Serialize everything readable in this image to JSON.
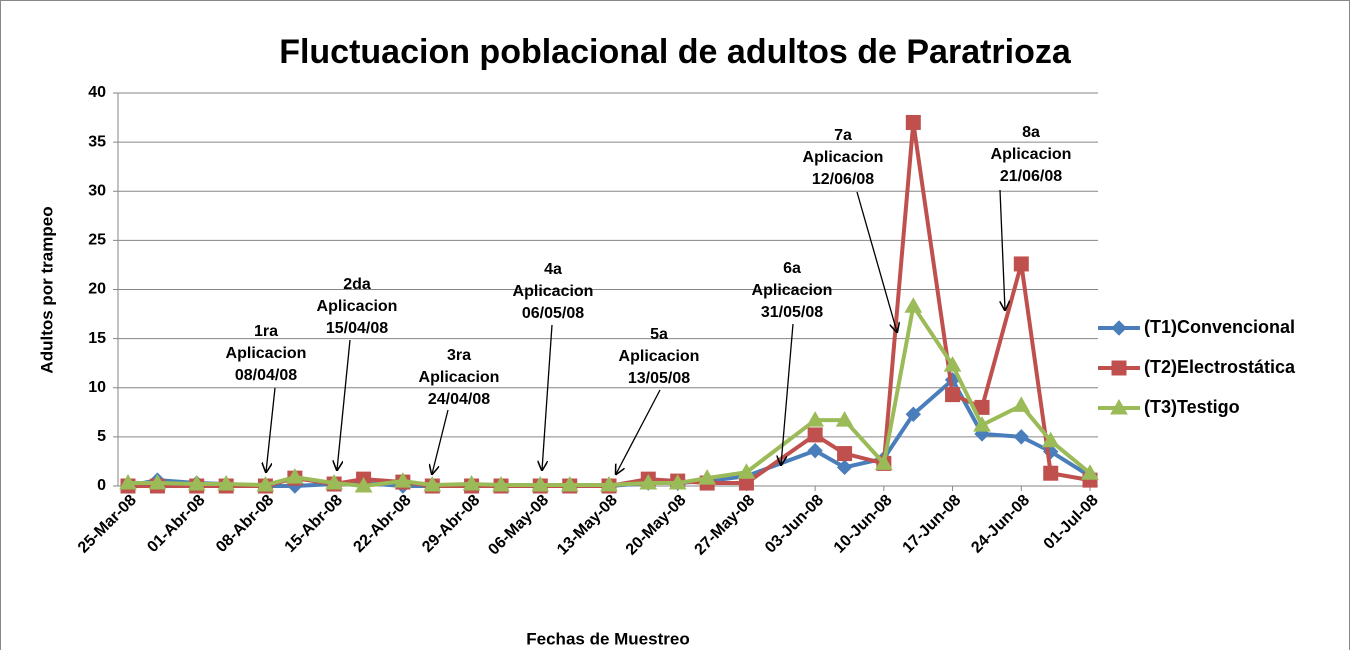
{
  "chart_data": {
    "type": "line",
    "title": "Fluctuacion poblacional de adultos de Paratrioza",
    "x_label": "Fechas de Muestreo",
    "y_label": "Adultos por trampeo",
    "x": [
      "2008-03-25",
      "2008-03-28",
      "2008-04-01",
      "2008-04-04",
      "2008-04-08",
      "2008-04-11",
      "2008-04-15",
      "2008-04-18",
      "2008-04-22",
      "2008-04-25",
      "2008-04-29",
      "2008-05-02",
      "2008-05-06",
      "2008-05-09",
      "2008-05-13",
      "2008-05-17",
      "2008-05-20",
      "2008-05-23",
      "2008-05-27",
      "2008-06-03",
      "2008-06-06",
      "2008-06-10",
      "2008-06-13",
      "2008-06-17",
      "2008-06-20",
      "2008-06-24",
      "2008-06-27",
      "2008-07-01"
    ],
    "series": [
      {
        "name": "(T1)Convencional",
        "color": "#4a7ebb",
        "marker": "diamond",
        "values": [
          0,
          0.6,
          0.3,
          0.2,
          0,
          0,
          0.2,
          0.3,
          0,
          0,
          0,
          0,
          0,
          0,
          0,
          0.3,
          0.3,
          0.5,
          1.0,
          3.6,
          1.9,
          2.8,
          7.3,
          10.8,
          5.3,
          5.0,
          3.5,
          1.0
        ]
      },
      {
        "name": "(T2)Electrostática",
        "color": "#c0504d",
        "marker": "square",
        "values": [
          0,
          0,
          0,
          0,
          0,
          0.8,
          0.2,
          0.7,
          0.4,
          0,
          0,
          0,
          0,
          0,
          0,
          0.7,
          0.5,
          0.3,
          0.3,
          5.2,
          3.3,
          2.3,
          37,
          9.3,
          8.0,
          22.6,
          1.3,
          0.6
        ]
      },
      {
        "name": "(T3)Testigo",
        "color": "#9bbb59",
        "marker": "triangle",
        "values": [
          0.3,
          0.3,
          0.2,
          0.2,
          0.1,
          0.9,
          0.3,
          0,
          0.5,
          0.1,
          0.2,
          0.1,
          0.1,
          0.1,
          0.1,
          0.3,
          0.3,
          0.8,
          1.4,
          6.7,
          6.7,
          2.3,
          18.3,
          12.3,
          6.2,
          8.2,
          4.6,
          1.3
        ]
      }
    ],
    "xlim": [
      "2008-03-25",
      "2008-07-01"
    ],
    "xticks": [
      {
        "value": "2008-03-25",
        "label": "25-Mar-08"
      },
      {
        "value": "2008-04-01",
        "label": "01-Abr-08"
      },
      {
        "value": "2008-04-08",
        "label": "08-Abr-08"
      },
      {
        "value": "2008-04-15",
        "label": "15-Abr-08"
      },
      {
        "value": "2008-04-22",
        "label": "22-Abr-08"
      },
      {
        "value": "2008-04-29",
        "label": "29-Abr-08"
      },
      {
        "value": "2008-05-06",
        "label": "06-May-08"
      },
      {
        "value": "2008-05-13",
        "label": "13-May-08"
      },
      {
        "value": "2008-05-20",
        "label": "20-May-08"
      },
      {
        "value": "2008-05-27",
        "label": "27-May-08"
      },
      {
        "value": "2008-06-03",
        "label": "03-Jun-08"
      },
      {
        "value": "2008-06-10",
        "label": "10-Jun-08"
      },
      {
        "value": "2008-06-17",
        "label": "17-Jun-08"
      },
      {
        "value": "2008-06-24",
        "label": "24-Jun-08"
      },
      {
        "value": "2008-07-01",
        "label": "01-Jul-08"
      }
    ],
    "ylim": [
      0,
      40
    ],
    "yticks": [
      0,
      5,
      10,
      15,
      20,
      25,
      30,
      35,
      40
    ],
    "grid": true,
    "legend": "right",
    "annotations": [
      {
        "lines": [
          "1ra",
          "Aplicacion",
          "08/04/08"
        ]
      },
      {
        "lines": [
          "2da",
          "Aplicacion",
          "15/04/08"
        ]
      },
      {
        "lines": [
          "3ra",
          "Aplicacion",
          "24/04/08"
        ]
      },
      {
        "lines": [
          "4a",
          "Aplicacion",
          "06/05/08"
        ]
      },
      {
        "lines": [
          "5a",
          "Aplicacion",
          "13/05/08"
        ]
      },
      {
        "lines": [
          "6a",
          "Aplicacion",
          "31/05/08"
        ]
      },
      {
        "lines": [
          "7a",
          "Aplicacion",
          "12/06/08"
        ]
      },
      {
        "lines": [
          "8a",
          "Aplicacion",
          "21/06/08"
        ]
      }
    ]
  }
}
